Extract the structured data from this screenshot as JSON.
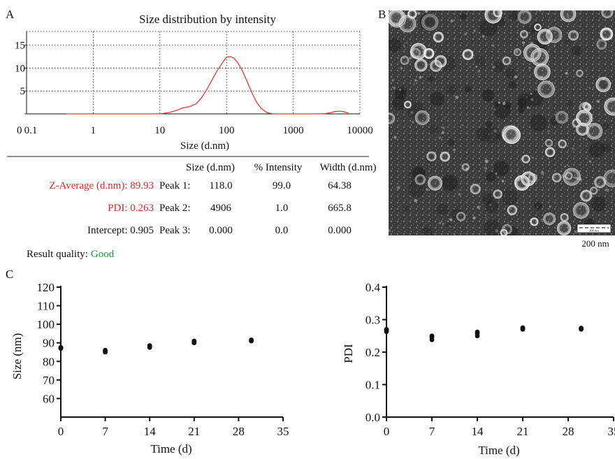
{
  "panel_labels": {
    "a": "A",
    "b": "B",
    "c": "C"
  },
  "colors": {
    "dls_curve": "#e23a3a",
    "red_text": "#d42a2a",
    "good_text": "#1a9a3a",
    "points": "#111111"
  },
  "panel_a": {
    "table": {
      "headers": [
        "Size (d.nm)",
        "% Intensity",
        "Width (d.nm)"
      ],
      "summary": [
        {
          "label": "Z-Average (d.nm): 89.93",
          "highlight": true
        },
        {
          "label": "PDI: 0.263",
          "highlight": true
        },
        {
          "label": "Intercept: 0.905",
          "highlight": false
        }
      ],
      "peaks": [
        {
          "name": "Peak 1:",
          "size": "118.0",
          "intensity": "99.0",
          "width": "64.38"
        },
        {
          "name": "Peak 2:",
          "size": "4906",
          "intensity": "1.0",
          "width": "665.8"
        },
        {
          "name": "Peak 3:",
          "size": "0.000",
          "intensity": "0.0",
          "width": "0.000"
        }
      ],
      "quality_label": "Result quality:",
      "quality_value": "Good"
    }
  },
  "panel_b": {
    "scale_bar_label": "200 nm",
    "scale_bar_inner": "200 nm"
  },
  "chart_data": [
    {
      "type": "line",
      "title": "Size distribution by intensity",
      "xlabel": "Size (d.nm)",
      "ylabel": "",
      "x_scale": "log",
      "xlim": [
        0.1,
        10000
      ],
      "ylim": [
        0,
        18
      ],
      "x_ticks": [
        "0.1",
        "1",
        "10",
        "100",
        "1000",
        "10000"
      ],
      "y_ticks": [
        "0",
        "5",
        "10",
        "15"
      ],
      "grid": true,
      "series": [
        {
          "x": [
            0.4,
            5,
            10,
            14,
            18,
            22,
            28,
            35,
            42,
            50,
            60,
            72,
            86,
            100,
            115,
            130,
            150,
            175,
            200,
            240,
            280,
            330,
            400,
            500,
            1000,
            2000,
            3000,
            3600,
            4200,
            4906,
            5600,
            6200,
            6700
          ],
          "y": [
            0,
            0,
            0,
            0.3,
            0.8,
            1.3,
            1.6,
            2.2,
            3.5,
            5.2,
            7.3,
            9.4,
            11.1,
            12.4,
            12.5,
            12.1,
            11.0,
            9.2,
            7.3,
            4.6,
            2.6,
            1.2,
            0.3,
            0,
            0,
            0,
            0.05,
            0.25,
            0.5,
            0.6,
            0.5,
            0.3,
            0.2
          ]
        }
      ]
    },
    {
      "type": "scatter",
      "title": "",
      "xlabel": "Time (d)",
      "ylabel": "Size (nm)",
      "xlim": [
        0,
        35
      ],
      "ylim": [
        50,
        120
      ],
      "x_ticks": [
        "0",
        "7",
        "14",
        "21",
        "28",
        "35"
      ],
      "y_ticks": [
        "60",
        "70",
        "80",
        "90",
        "100",
        "110",
        "120"
      ],
      "grid": false,
      "series": [
        {
          "x": [
            0,
            0,
            0,
            7,
            7,
            7,
            14,
            14,
            14,
            21,
            21,
            21,
            30,
            30,
            30
          ],
          "y": [
            87.0,
            87.3,
            87.6,
            85.0,
            85.5,
            86.0,
            87.5,
            88.0,
            88.5,
            90.0,
            90.5,
            91.0,
            91.0,
            91.3,
            91.6
          ]
        }
      ]
    },
    {
      "type": "scatter",
      "title": "",
      "xlabel": "Time (d)",
      "ylabel": "PDI",
      "xlim": [
        0,
        35
      ],
      "ylim": [
        0,
        0.4
      ],
      "x_ticks": [
        "0",
        "7",
        "14",
        "21",
        "28",
        "35"
      ],
      "y_ticks": [
        "0.0",
        "0.1",
        "0.2",
        "0.3",
        "0.4"
      ],
      "grid": false,
      "series": [
        {
          "x": [
            0,
            0,
            0,
            7,
            7,
            7,
            14,
            14,
            14,
            21,
            21,
            21,
            30,
            30,
            30
          ],
          "y": [
            0.263,
            0.267,
            0.27,
            0.238,
            0.246,
            0.25,
            0.25,
            0.258,
            0.262,
            0.27,
            0.273,
            0.275,
            0.27,
            0.272,
            0.274
          ]
        }
      ]
    }
  ]
}
